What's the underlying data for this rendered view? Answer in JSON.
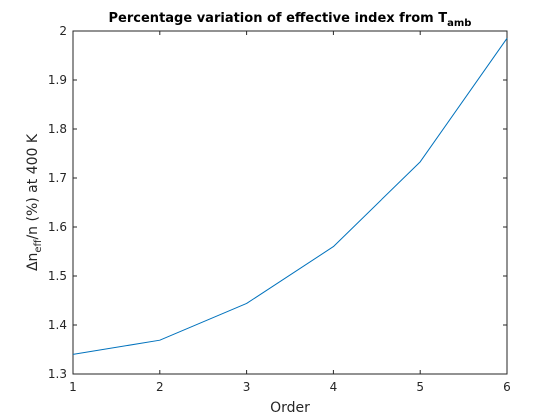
{
  "chart_data": {
    "type": "line",
    "title": {
      "main": "Percentage variation of effective index from T",
      "subscript": "amb"
    },
    "xlabel": "Order",
    "ylabel": {
      "prefix": "Δn",
      "subscript": "eff",
      "suffix": "/n (%) at 400 K"
    },
    "x": [
      1,
      2,
      3,
      4,
      5,
      6
    ],
    "series": [
      {
        "values": [
          1.34,
          1.369,
          1.444,
          1.56,
          1.733,
          1.985
        ]
      }
    ],
    "xlim": [
      1,
      6
    ],
    "ylim": [
      1.3,
      2.0
    ],
    "xticks": [
      1,
      2,
      3,
      4,
      5,
      6
    ],
    "xtick_labels": [
      "1",
      "2",
      "3",
      "4",
      "5",
      "6"
    ],
    "yticks": [
      1.3,
      1.4,
      1.5,
      1.6,
      1.7,
      1.8,
      1.9,
      2.0
    ],
    "ytick_labels": [
      "1.3",
      "1.4",
      "1.5",
      "1.6",
      "1.7",
      "1.8",
      "1.9",
      "2"
    ],
    "grid": false,
    "colors": {
      "line": "#0072bd",
      "axis": "#262626"
    }
  }
}
